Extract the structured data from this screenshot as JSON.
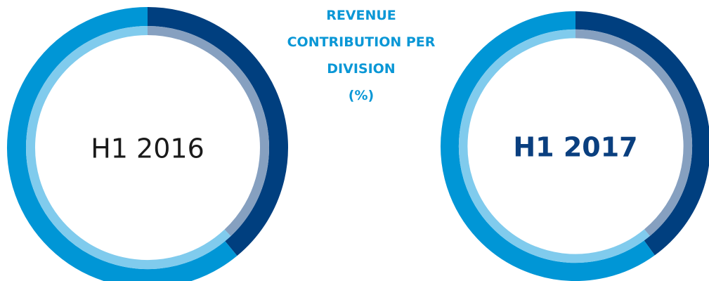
{
  "title_lines": [
    "REVENUE",
    "CONTRIBUTION PER",
    "DIVISION",
    "(%)"
  ],
  "chart_data": [
    {
      "type": "donut",
      "label": "H1 2016",
      "bold": false,
      "label_color": "#1a1a1a",
      "rings": [
        {
          "values": [
            39,
            61
          ],
          "colors": [
            "#003f7f",
            "#0096d6"
          ]
        },
        {
          "values": [
            38,
            62
          ],
          "colors": [
            "#86a0c0",
            "#80cbed"
          ]
        }
      ]
    },
    {
      "type": "donut",
      "label": "H1 2017",
      "bold": true,
      "label_color": "#0a3f7f",
      "rings": [
        {
          "values": [
            40,
            60
          ],
          "colors": [
            "#003f7f",
            "#0096d6"
          ]
        },
        {
          "values": [
            39,
            61
          ],
          "colors": [
            "#86a0c0",
            "#80cbed"
          ]
        }
      ]
    }
  ]
}
